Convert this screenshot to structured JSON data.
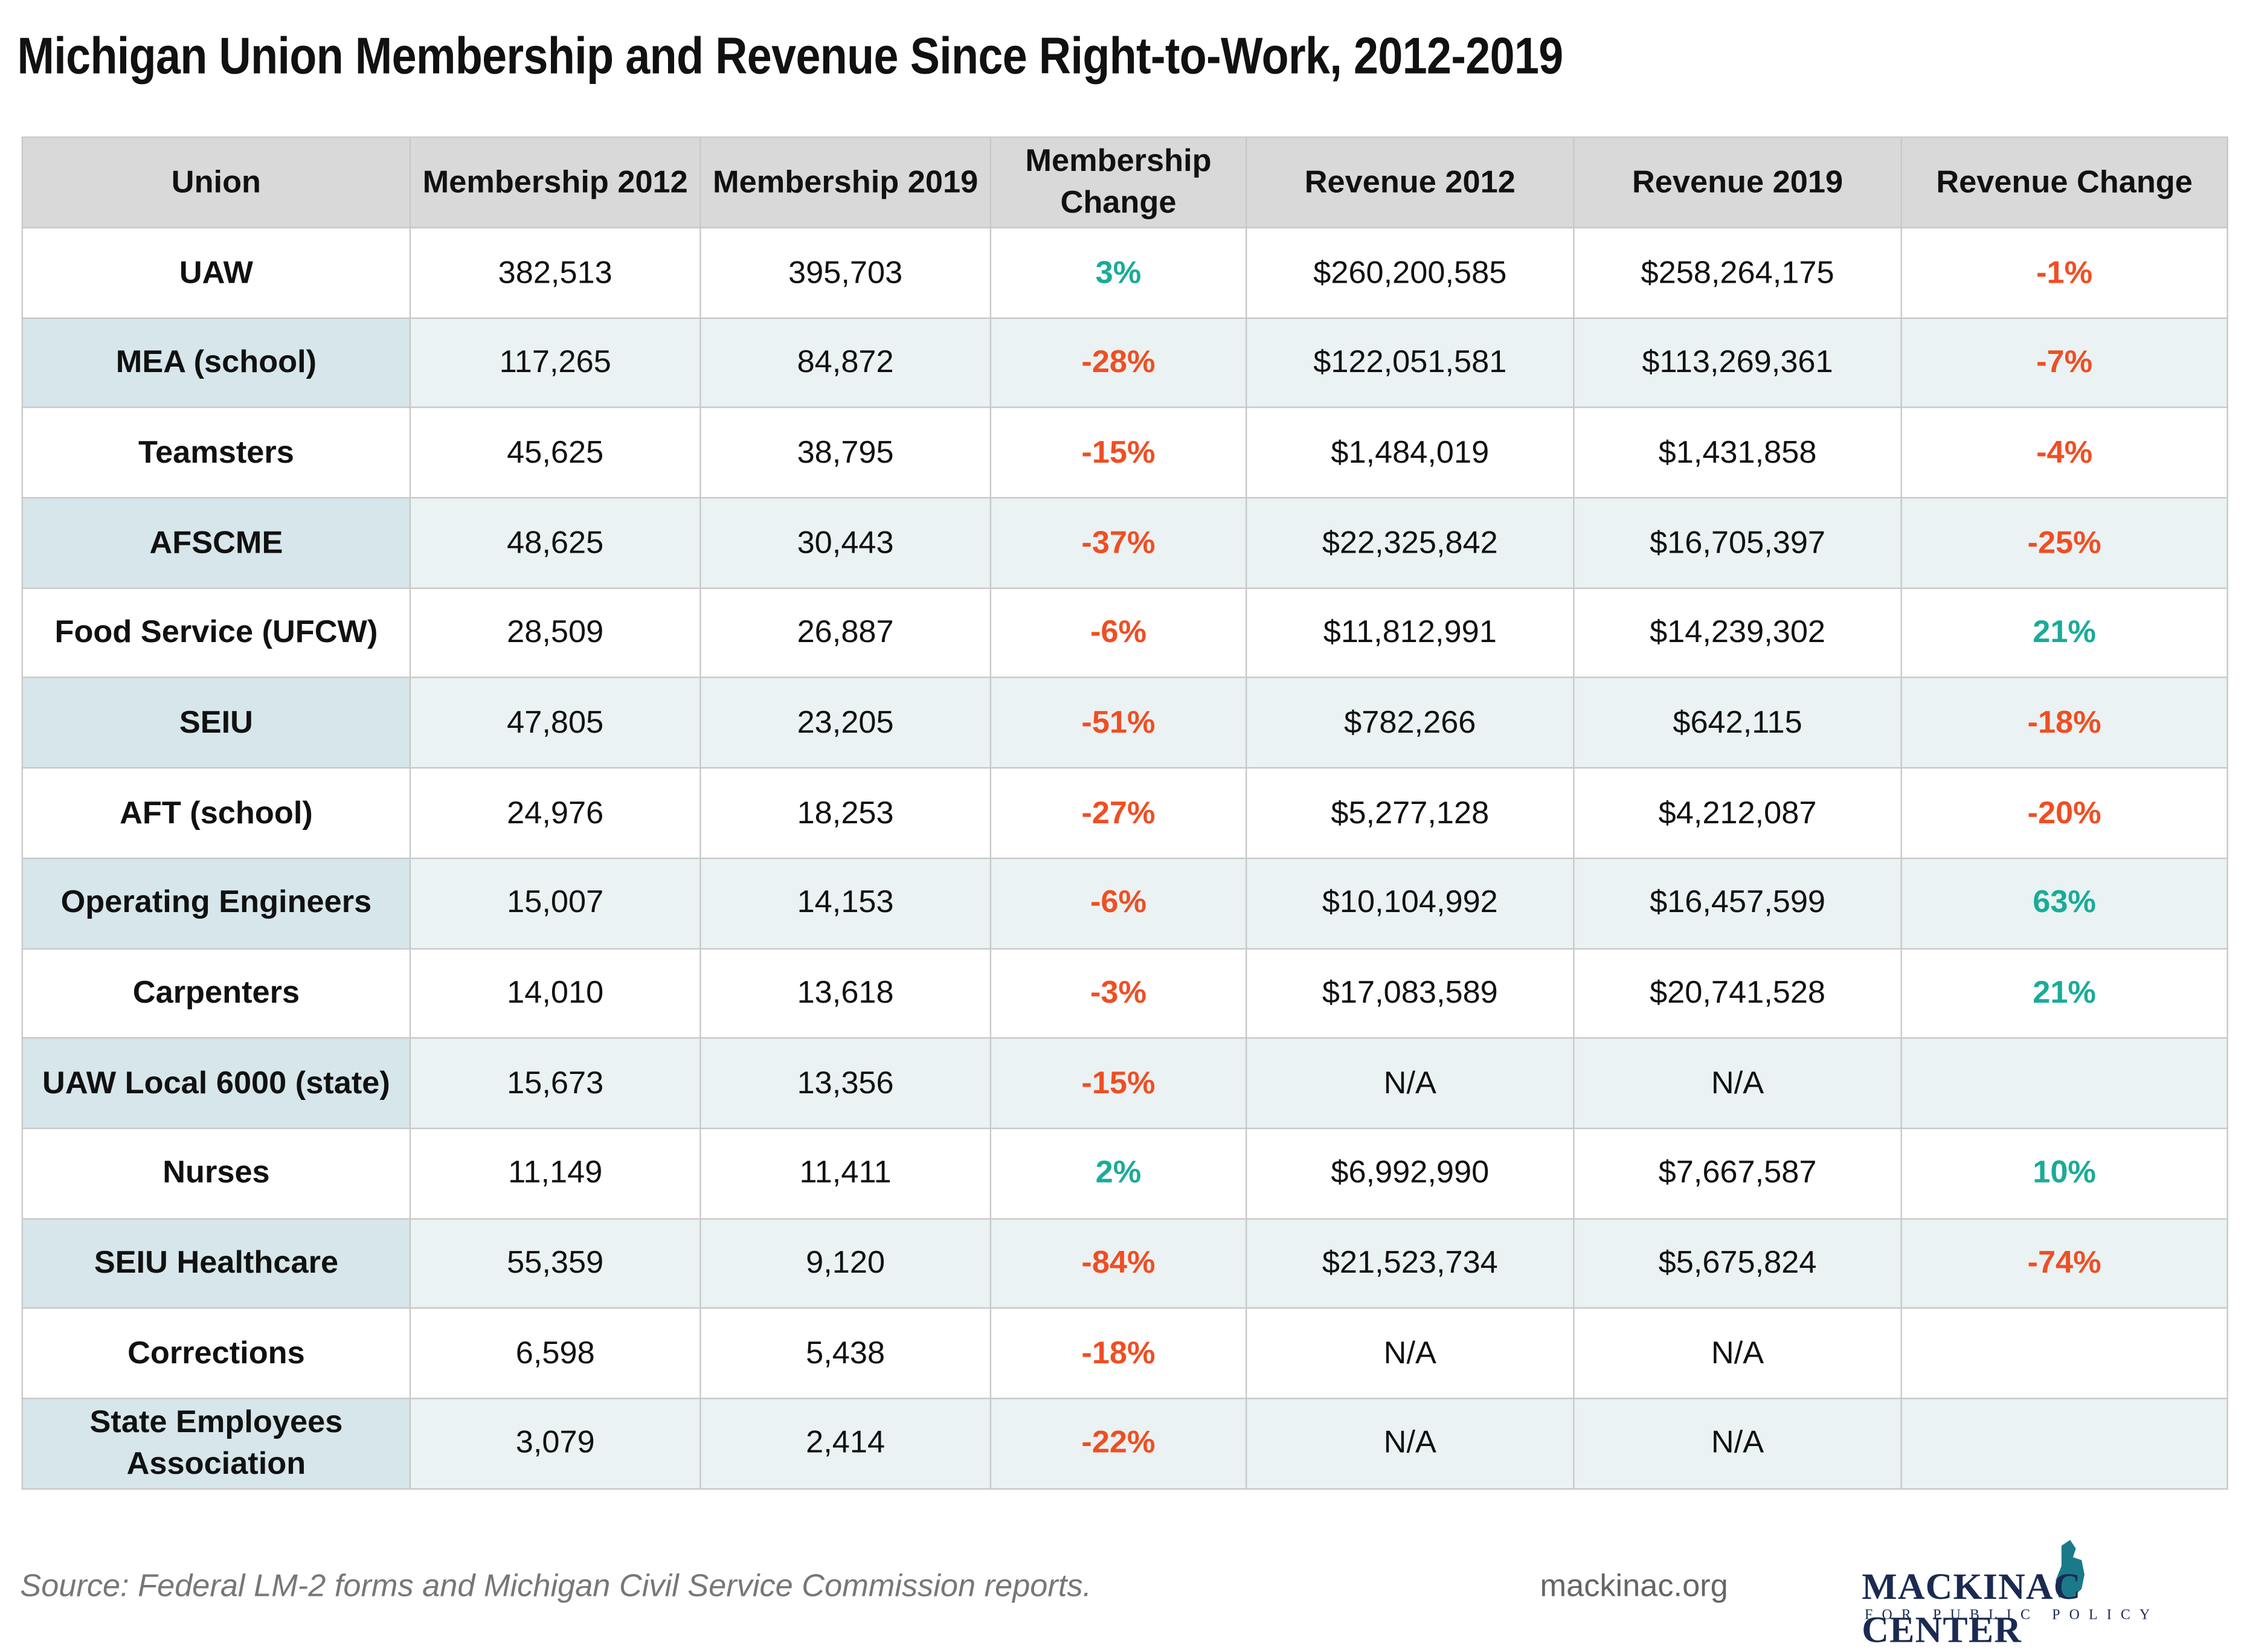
{
  "header": {
    "title": "Michigan Union Membership and Revenue Since Right-to-Work, 2012-2019"
  },
  "table": {
    "columns": [
      "Union",
      "Membership 2012",
      "Membership 2019",
      "Membership Change",
      "Revenue 2012",
      "Revenue 2019",
      "Revenue Change"
    ],
    "rows": [
      [
        "UAW",
        "382,513",
        "395,703",
        "3%",
        "$260,200,585",
        "$258,264,175",
        "-1%"
      ],
      [
        "MEA (school)",
        "117,265",
        "84,872",
        "-28%",
        "$122,051,581",
        "$113,269,361",
        "-7%"
      ],
      [
        "Teamsters",
        "45,625",
        "38,795",
        "-15%",
        "$1,484,019",
        "$1,431,858",
        "-4%"
      ],
      [
        "AFSCME",
        "48,625",
        "30,443",
        "-37%",
        "$22,325,842",
        "$16,705,397",
        "-25%"
      ],
      [
        "Food Service (UFCW)",
        "28,509",
        "26,887",
        "-6%",
        "$11,812,991",
        "$14,239,302",
        "21%"
      ],
      [
        "SEIU",
        "47,805",
        "23,205",
        "-51%",
        "$782,266",
        "$642,115",
        "-18%"
      ],
      [
        "AFT (school)",
        "24,976",
        "18,253",
        "-27%",
        "$5,277,128",
        "$4,212,087",
        "-20%"
      ],
      [
        "Operating Engineers",
        "15,007",
        "14,153",
        "-6%",
        "$10,104,992",
        "$16,457,599",
        "63%"
      ],
      [
        "Carpenters",
        "14,010",
        "13,618",
        "-3%",
        "$17,083,589",
        "$20,741,528",
        "21%"
      ],
      [
        "UAW Local 6000 (state)",
        "15,673",
        "13,356",
        "-15%",
        "N/A",
        "N/A"
      ],
      [
        "Nurses",
        "11,149",
        "11,411",
        "2%",
        "$6,992,990",
        "$7,667,587",
        "10%"
      ],
      [
        "SEIU Healthcare",
        "55,359",
        "9,120",
        "-84%",
        "$21,523,734",
        "$5,675,824",
        "-74%"
      ],
      [
        "Corrections",
        "6,598",
        "5,438",
        "-18%",
        "N/A",
        "N/A"
      ],
      [
        "State Employees Association",
        "3,079",
        "2,414",
        "-22%",
        "N/A",
        "N/A"
      ]
    ]
  },
  "footer": {
    "source": "Source: Federal LM-2 forms and Michigan Civil Service Commission reports.",
    "website": "mackinac.org",
    "logo_name": "MACKINAC CENTER",
    "logo_tagline": "FOR PUBLIC POLICY"
  }
}
